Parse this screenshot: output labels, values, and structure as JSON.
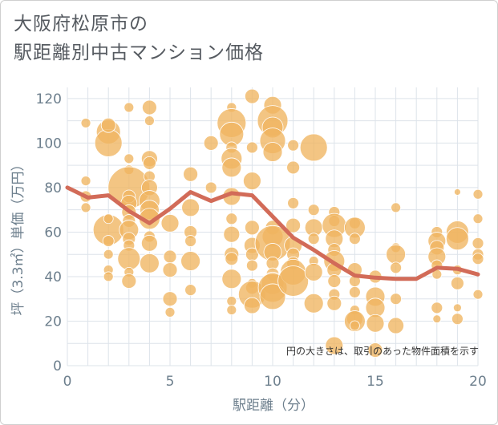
{
  "title_line1": "大阪府松原市の",
  "title_line2": "駅距離別中古マンション価格",
  "note": "円の大きさは、取引のあった物件面積を示す",
  "colors": {
    "bubble_fill": "#f0b560",
    "bubble_stroke": "#ffffff",
    "line": "#d26b58",
    "grid": "#dde3ea",
    "axis_text": "#6d7f8d"
  },
  "chart_data": {
    "type": "scatter",
    "title": "",
    "xlabel": "駅距離（分）",
    "ylabel": "坪（3.3㎡）単価（万円）",
    "xlim": [
      0,
      20
    ],
    "ylim": [
      0,
      125
    ],
    "x_ticks": [
      0,
      5,
      10,
      15,
      20
    ],
    "y_ticks": [
      0,
      20,
      40,
      60,
      80,
      100,
      120
    ],
    "x_tick_labels": [
      "0",
      "5",
      "10",
      "15",
      "20"
    ],
    "y_tick_labels": [
      "0",
      "20",
      "40",
      "60",
      "80",
      "100",
      "120"
    ],
    "grid": true,
    "bubble_points": [
      {
        "x": 0.9,
        "y": 109,
        "s": 6
      },
      {
        "x": 0.9,
        "y": 83,
        "s": 6
      },
      {
        "x": 0.9,
        "y": 76,
        "s": 7
      },
      {
        "x": 0.9,
        "y": 71,
        "s": 6
      },
      {
        "x": 2,
        "y": 105,
        "s": 15
      },
      {
        "x": 2,
        "y": 100,
        "s": 17
      },
      {
        "x": 2,
        "y": 108,
        "s": 9
      },
      {
        "x": 2,
        "y": 61,
        "s": 19
      },
      {
        "x": 2,
        "y": 66,
        "s": 6
      },
      {
        "x": 2,
        "y": 56,
        "s": 7
      },
      {
        "x": 2,
        "y": 50,
        "s": 6
      },
      {
        "x": 2,
        "y": 43,
        "s": 6
      },
      {
        "x": 2,
        "y": 40,
        "s": 6
      },
      {
        "x": 3,
        "y": 116,
        "s": 6
      },
      {
        "x": 3,
        "y": 93,
        "s": 6
      },
      {
        "x": 3,
        "y": 88,
        "s": 6
      },
      {
        "x": 3,
        "y": 80,
        "s": 26
      },
      {
        "x": 3,
        "y": 76,
        "s": 8
      },
      {
        "x": 3,
        "y": 73,
        "s": 10
      },
      {
        "x": 3,
        "y": 69,
        "s": 9
      },
      {
        "x": 3,
        "y": 65,
        "s": 8
      },
      {
        "x": 3,
        "y": 61,
        "s": 12
      },
      {
        "x": 3,
        "y": 57,
        "s": 8
      },
      {
        "x": 3,
        "y": 54,
        "s": 7
      },
      {
        "x": 3,
        "y": 48,
        "s": 14
      },
      {
        "x": 3,
        "y": 42,
        "s": 6
      },
      {
        "x": 3,
        "y": 38,
        "s": 9
      },
      {
        "x": 4,
        "y": 116,
        "s": 9
      },
      {
        "x": 4,
        "y": 110,
        "s": 6
      },
      {
        "x": 4,
        "y": 93,
        "s": 10
      },
      {
        "x": 4,
        "y": 91,
        "s": 8
      },
      {
        "x": 4,
        "y": 85,
        "s": 7
      },
      {
        "x": 4,
        "y": 80,
        "s": 10
      },
      {
        "x": 4,
        "y": 74,
        "s": 13
      },
      {
        "x": 4,
        "y": 70,
        "s": 12
      },
      {
        "x": 4,
        "y": 66,
        "s": 13
      },
      {
        "x": 4,
        "y": 58,
        "s": 7
      },
      {
        "x": 4,
        "y": 55,
        "s": 10
      },
      {
        "x": 4,
        "y": 46,
        "s": 12
      },
      {
        "x": 5,
        "y": 64,
        "s": 11
      },
      {
        "x": 5,
        "y": 49,
        "s": 8
      },
      {
        "x": 5,
        "y": 43,
        "s": 9
      },
      {
        "x": 5,
        "y": 30,
        "s": 9
      },
      {
        "x": 5,
        "y": 24,
        "s": 6
      },
      {
        "x": 6,
        "y": 86,
        "s": 9
      },
      {
        "x": 6,
        "y": 71,
        "s": 11
      },
      {
        "x": 6,
        "y": 60,
        "s": 8
      },
      {
        "x": 6,
        "y": 56,
        "s": 7
      },
      {
        "x": 6,
        "y": 47,
        "s": 12
      },
      {
        "x": 6,
        "y": 34,
        "s": 7
      },
      {
        "x": 7,
        "y": 100,
        "s": 9
      },
      {
        "x": 7,
        "y": 80,
        "s": 7
      },
      {
        "x": 8,
        "y": 116,
        "s": 6
      },
      {
        "x": 8,
        "y": 109,
        "s": 18
      },
      {
        "x": 8,
        "y": 104,
        "s": 15
      },
      {
        "x": 8,
        "y": 98,
        "s": 7
      },
      {
        "x": 8,
        "y": 93,
        "s": 13
      },
      {
        "x": 8,
        "y": 89,
        "s": 12
      },
      {
        "x": 8,
        "y": 76,
        "s": 11
      },
      {
        "x": 8,
        "y": 66,
        "s": 7
      },
      {
        "x": 8,
        "y": 59,
        "s": 10
      },
      {
        "x": 8,
        "y": 50,
        "s": 9
      },
      {
        "x": 8,
        "y": 48,
        "s": 8
      },
      {
        "x": 8,
        "y": 39,
        "s": 12
      },
      {
        "x": 8,
        "y": 29,
        "s": 6
      },
      {
        "x": 8,
        "y": 25,
        "s": 6
      },
      {
        "x": 9,
        "y": 121,
        "s": 9
      },
      {
        "x": 9,
        "y": 98,
        "s": 7
      },
      {
        "x": 9,
        "y": 83,
        "s": 11
      },
      {
        "x": 9,
        "y": 62,
        "s": 9
      },
      {
        "x": 9,
        "y": 54,
        "s": 10
      },
      {
        "x": 9,
        "y": 50,
        "s": 8
      },
      {
        "x": 9,
        "y": 45,
        "s": 7
      },
      {
        "x": 9,
        "y": 37,
        "s": 6
      },
      {
        "x": 9,
        "y": 35,
        "s": 8
      },
      {
        "x": 9,
        "y": 32,
        "s": 17
      },
      {
        "x": 9,
        "y": 27,
        "s": 10
      },
      {
        "x": 10,
        "y": 117,
        "s": 11
      },
      {
        "x": 10,
        "y": 110,
        "s": 19
      },
      {
        "x": 10,
        "y": 107,
        "s": 13
      },
      {
        "x": 10,
        "y": 101,
        "s": 16
      },
      {
        "x": 10,
        "y": 96,
        "s": 12
      },
      {
        "x": 10,
        "y": 62,
        "s": 9
      },
      {
        "x": 10,
        "y": 58,
        "s": 13
      },
      {
        "x": 10,
        "y": 55,
        "s": 22
      },
      {
        "x": 10,
        "y": 51,
        "s": 11
      },
      {
        "x": 10,
        "y": 46,
        "s": 8
      },
      {
        "x": 10,
        "y": 41,
        "s": 8
      },
      {
        "x": 10,
        "y": 37,
        "s": 14
      },
      {
        "x": 10,
        "y": 35,
        "s": 18
      },
      {
        "x": 10,
        "y": 31,
        "s": 16
      },
      {
        "x": 11,
        "y": 99,
        "s": 7
      },
      {
        "x": 11,
        "y": 89,
        "s": 8
      },
      {
        "x": 11,
        "y": 73,
        "s": 7
      },
      {
        "x": 11,
        "y": 63,
        "s": 9
      },
      {
        "x": 11,
        "y": 54,
        "s": 11
      },
      {
        "x": 11,
        "y": 50,
        "s": 8
      },
      {
        "x": 11,
        "y": 46,
        "s": 8
      },
      {
        "x": 11,
        "y": 42,
        "s": 16
      },
      {
        "x": 11,
        "y": 38,
        "s": 19
      },
      {
        "x": 12,
        "y": 98,
        "s": 17
      },
      {
        "x": 12,
        "y": 70,
        "s": 7
      },
      {
        "x": 12,
        "y": 62,
        "s": 11
      },
      {
        "x": 12,
        "y": 57,
        "s": 7
      },
      {
        "x": 12,
        "y": 47,
        "s": 6
      },
      {
        "x": 12,
        "y": 42,
        "s": 11
      },
      {
        "x": 12,
        "y": 28,
        "s": 12
      },
      {
        "x": 13,
        "y": 69,
        "s": 7
      },
      {
        "x": 13,
        "y": 65,
        "s": 7
      },
      {
        "x": 13,
        "y": 63,
        "s": 15
      },
      {
        "x": 13,
        "y": 57,
        "s": 11
      },
      {
        "x": 13,
        "y": 52,
        "s": 8
      },
      {
        "x": 13,
        "y": 47,
        "s": 13
      },
      {
        "x": 13,
        "y": 43,
        "s": 9
      },
      {
        "x": 13,
        "y": 38,
        "s": 8
      },
      {
        "x": 13,
        "y": 32,
        "s": 7
      },
      {
        "x": 13,
        "y": 28,
        "s": 9
      },
      {
        "x": 13,
        "y": 9,
        "s": 11
      },
      {
        "x": 14,
        "y": 64,
        "s": 7
      },
      {
        "x": 14,
        "y": 62,
        "s": 13
      },
      {
        "x": 14,
        "y": 57,
        "s": 7
      },
      {
        "x": 14,
        "y": 43,
        "s": 9
      },
      {
        "x": 14,
        "y": 38,
        "s": 7
      },
      {
        "x": 14,
        "y": 33,
        "s": 7
      },
      {
        "x": 14,
        "y": 25,
        "s": 6
      },
      {
        "x": 14,
        "y": 21,
        "s": 10
      },
      {
        "x": 14,
        "y": 20,
        "s": 13
      },
      {
        "x": 14,
        "y": 18,
        "s": 6
      },
      {
        "x": 15,
        "y": 40,
        "s": 8
      },
      {
        "x": 15,
        "y": 31,
        "s": 12
      },
      {
        "x": 15,
        "y": 26,
        "s": 12
      },
      {
        "x": 15,
        "y": 19,
        "s": 11
      },
      {
        "x": 15,
        "y": 7,
        "s": 9
      },
      {
        "x": 16,
        "y": 71,
        "s": 6
      },
      {
        "x": 16,
        "y": 53,
        "s": 6
      },
      {
        "x": 16,
        "y": 50,
        "s": 12
      },
      {
        "x": 16,
        "y": 44,
        "s": 7
      },
      {
        "x": 16,
        "y": 30,
        "s": 7
      },
      {
        "x": 16,
        "y": 18,
        "s": 10
      },
      {
        "x": 18,
        "y": 60,
        "s": 7
      },
      {
        "x": 18,
        "y": 56,
        "s": 11
      },
      {
        "x": 18,
        "y": 53,
        "s": 9
      },
      {
        "x": 18,
        "y": 49,
        "s": 11
      },
      {
        "x": 18,
        "y": 45,
        "s": 7
      },
      {
        "x": 18,
        "y": 41,
        "s": 6
      },
      {
        "x": 18,
        "y": 26,
        "s": 7
      },
      {
        "x": 18,
        "y": 21,
        "s": 5
      },
      {
        "x": 19,
        "y": 78,
        "s": 4
      },
      {
        "x": 19,
        "y": 60,
        "s": 14
      },
      {
        "x": 19,
        "y": 57,
        "s": 14
      },
      {
        "x": 19,
        "y": 43,
        "s": 6
      },
      {
        "x": 19,
        "y": 37,
        "s": 8
      },
      {
        "x": 19,
        "y": 26,
        "s": 5
      },
      {
        "x": 19,
        "y": 21,
        "s": 7
      },
      {
        "x": 20,
        "y": 77,
        "s": 6
      },
      {
        "x": 20,
        "y": 66,
        "s": 6
      },
      {
        "x": 20,
        "y": 55,
        "s": 7
      },
      {
        "x": 20,
        "y": 50,
        "s": 7
      },
      {
        "x": 20,
        "y": 48,
        "s": 7
      },
      {
        "x": 20,
        "y": 32,
        "s": 6
      }
    ],
    "line_series": {
      "x": [
        0,
        1,
        2,
        3,
        4,
        5,
        6,
        7,
        8,
        9,
        10,
        11,
        12,
        13,
        14,
        15,
        16,
        17,
        18,
        19,
        20
      ],
      "y": [
        80,
        75.5,
        76.5,
        69.5,
        64,
        70.5,
        78,
        74,
        77.5,
        76.5,
        67,
        57.5,
        52,
        46,
        40.5,
        39.5,
        39,
        39,
        44,
        43.5,
        41
      ]
    }
  }
}
